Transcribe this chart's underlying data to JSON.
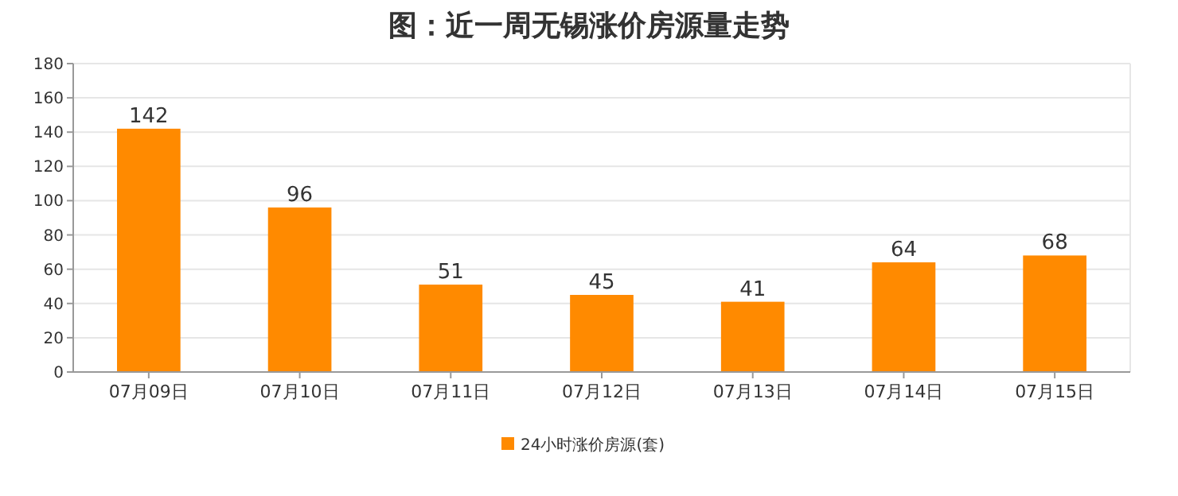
{
  "chart_data": {
    "type": "bar",
    "title": "图：近一周无锡涨价房源量走势",
    "categories": [
      "07月09日",
      "07月10日",
      "07月11日",
      "07月12日",
      "07月13日",
      "07月14日",
      "07月15日"
    ],
    "series": [
      {
        "name": "24小时涨价房源(套)",
        "color": "#ff8a00",
        "values": [
          142,
          96,
          51,
          45,
          41,
          64,
          68
        ]
      }
    ],
    "ylim": [
      0,
      180
    ],
    "yticks": [
      0,
      20,
      40,
      60,
      80,
      100,
      120,
      140,
      160,
      180
    ],
    "grid": "y",
    "legend": "bottom",
    "data_labels": true
  }
}
